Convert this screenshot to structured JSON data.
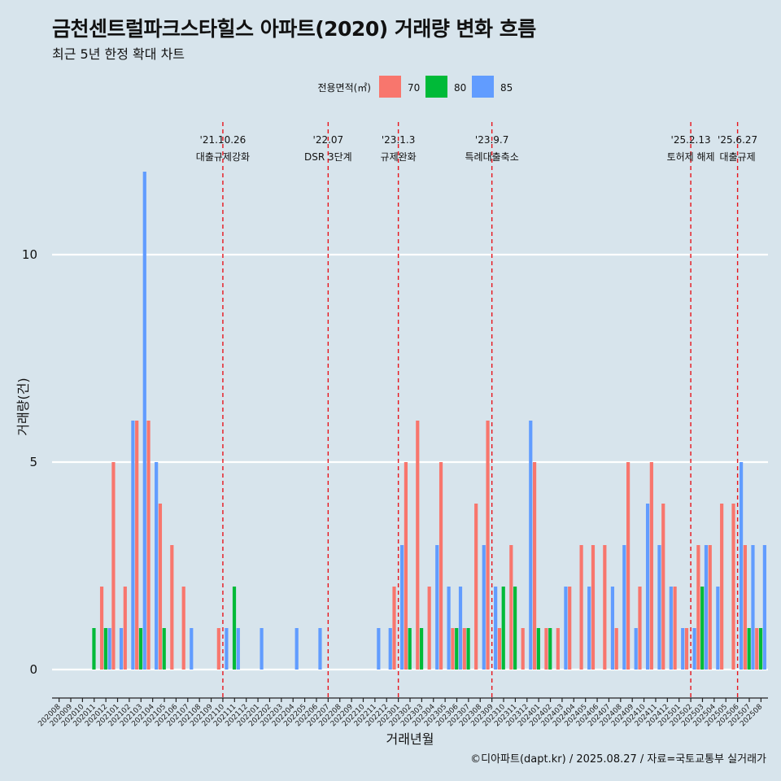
{
  "title": "금천센트럴파크스타힐스 아파트(2020) 거래량 변화 흐름",
  "subtitle": "최근 5년 한정 확대 차트",
  "credit": "©디아파트(dapt.kr) / 2025.08.27 / 자료=국토교통부 실거래가",
  "chart_data": {
    "type": "bar",
    "xlabel": "거래년월",
    "ylabel": "거래량(건)",
    "ylim": [
      0,
      12
    ],
    "yticks": [
      0,
      5,
      10
    ],
    "legend": {
      "title": "전용면적(㎡)",
      "placement": "top"
    },
    "categories": [
      "202008",
      "202009",
      "202010",
      "202011",
      "202012",
      "202101",
      "202102",
      "202103",
      "202104",
      "202105",
      "202106",
      "202107",
      "202108",
      "202109",
      "202110",
      "202111",
      "202112",
      "202201",
      "202202",
      "202203",
      "202204",
      "202205",
      "202206",
      "202207",
      "202208",
      "202209",
      "202210",
      "202211",
      "202212",
      "202301",
      "202302",
      "202303",
      "202304",
      "202305",
      "202306",
      "202307",
      "202308",
      "202309",
      "202310",
      "202311",
      "202312",
      "202401",
      "202402",
      "202403",
      "202404",
      "202405",
      "202406",
      "202407",
      "202408",
      "202409",
      "202410",
      "202411",
      "202412",
      "202501",
      "202502",
      "202503",
      "202504",
      "202505",
      "202506",
      "202507",
      "202508"
    ],
    "series": [
      {
        "name": "70",
        "color": "#f8766d",
        "values": [
          0,
          0,
          0,
          0,
          2,
          5,
          2,
          6,
          6,
          4,
          3,
          2,
          0,
          0,
          1,
          0,
          0,
          0,
          0,
          0,
          0,
          0,
          0,
          0,
          0,
          0,
          0,
          0,
          0,
          2,
          5,
          6,
          2,
          5,
          1,
          1,
          4,
          6,
          1,
          3,
          1,
          5,
          1,
          1,
          2,
          3,
          3,
          3,
          1,
          5,
          2,
          5,
          4,
          2,
          1,
          3,
          3,
          4,
          4,
          3,
          1
        ]
      },
      {
        "name": "80",
        "color": "#00ba38",
        "values": [
          0,
          0,
          0,
          1,
          1,
          0,
          0,
          1,
          0,
          1,
          0,
          0,
          0,
          0,
          0,
          2,
          0,
          0,
          0,
          0,
          0,
          0,
          0,
          0,
          0,
          0,
          0,
          0,
          0,
          0,
          1,
          1,
          0,
          0,
          1,
          1,
          0,
          0,
          2,
          2,
          0,
          1,
          1,
          0,
          0,
          0,
          0,
          0,
          0,
          0,
          0,
          0,
          0,
          0,
          0,
          2,
          0,
          0,
          0,
          1,
          1
        ]
      },
      {
        "name": "85",
        "color": "#619cff",
        "values": [
          0,
          0,
          0,
          0,
          1,
          1,
          6,
          12,
          5,
          0,
          0,
          1,
          0,
          0,
          1,
          1,
          0,
          1,
          0,
          0,
          1,
          0,
          1,
          0,
          0,
          0,
          0,
          1,
          1,
          3,
          0,
          0,
          3,
          2,
          2,
          0,
          3,
          2,
          0,
          0,
          6,
          0,
          0,
          2,
          0,
          2,
          0,
          2,
          3,
          1,
          4,
          3,
          2,
          1,
          1,
          3,
          2,
          0,
          5,
          3,
          3
        ]
      }
    ],
    "annotations": [
      {
        "category": "202110",
        "date": "'21.10.26",
        "label": "대출규제강화"
      },
      {
        "category": "202207",
        "date": "'22.07",
        "label": "DSR 3단계"
      },
      {
        "category": "202301",
        "date": "'23.1.3",
        "label": "규제완화"
      },
      {
        "category": "202309",
        "date": "'23.9.7",
        "label": "특례대출축소"
      },
      {
        "category": "202502",
        "date": "'25.2.13",
        "label": "토허제 해제"
      },
      {
        "category": "202506",
        "date": "'25.6.27",
        "label": "대출규제"
      }
    ]
  }
}
